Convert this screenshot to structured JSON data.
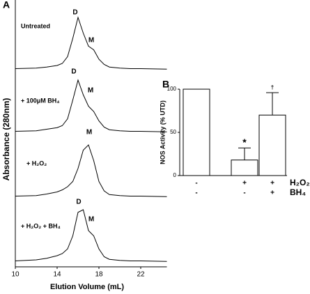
{
  "chart_data": [
    {
      "type": "line",
      "label": "A",
      "xlabel": "Elution Volume (mL)",
      "ylabel": "Absorbance (280nm)",
      "xlim": [
        10,
        24.5
      ],
      "xticks": [
        10,
        14,
        18,
        22
      ],
      "x": [
        10,
        12,
        13,
        14,
        14.5,
        15,
        15.5,
        16,
        16.5,
        17,
        17.5,
        18,
        18.5,
        19,
        20,
        21,
        22,
        24.5
      ],
      "series": [
        {
          "name": "Untreated",
          "color": "#000000",
          "annotations": [
            "D",
            "M"
          ],
          "values": [
            0.02,
            0.03,
            0.05,
            0.08,
            0.12,
            0.25,
            0.6,
            1.0,
            0.7,
            0.45,
            0.38,
            0.2,
            0.1,
            0.05,
            0.03,
            0.02,
            0.02,
            0.01
          ]
        },
        {
          "name": "+ 100μM BH₄",
          "color": "#000000",
          "annotations": [
            "D",
            "M"
          ],
          "values": [
            0.02,
            0.03,
            0.06,
            0.09,
            0.13,
            0.26,
            0.62,
            1.0,
            0.72,
            0.5,
            0.4,
            0.22,
            0.1,
            0.05,
            0.03,
            0.02,
            0.02,
            0.01
          ]
        },
        {
          "name": "+ H₂O₂",
          "color": "#000000",
          "annotations": [
            "M"
          ],
          "values": [
            0.02,
            0.03,
            0.06,
            0.1,
            0.14,
            0.2,
            0.3,
            0.55,
            0.9,
            1.0,
            0.7,
            0.3,
            0.12,
            0.05,
            0.03,
            0.02,
            0.02,
            0.01
          ]
        },
        {
          "name": "+ H₂O₂ + BH₄",
          "color": "#000000",
          "annotations": [
            "D",
            "M"
          ],
          "values": [
            0.02,
            0.04,
            0.07,
            0.12,
            0.16,
            0.25,
            0.5,
            0.95,
            1.0,
            0.6,
            0.5,
            0.25,
            0.1,
            0.05,
            0.03,
            0.02,
            0.02,
            0.01
          ]
        }
      ]
    },
    {
      "type": "bar",
      "label": "B",
      "ylabel": "NOS Activity (% UTD)",
      "ylim": [
        0,
        100
      ],
      "yticks": [
        0,
        50,
        100
      ],
      "color": "#ffffff",
      "values": [
        100,
        18,
        70
      ],
      "errors": [
        null,
        14,
        26
      ],
      "significance_labels": [
        null,
        "*",
        "†"
      ],
      "treatments": [
        {
          "name": "H₂O₂",
          "signs": [
            "-",
            "+",
            "+"
          ]
        },
        {
          "name": "BH₄",
          "signs": [
            "-",
            "-",
            "+"
          ]
        }
      ]
    }
  ]
}
